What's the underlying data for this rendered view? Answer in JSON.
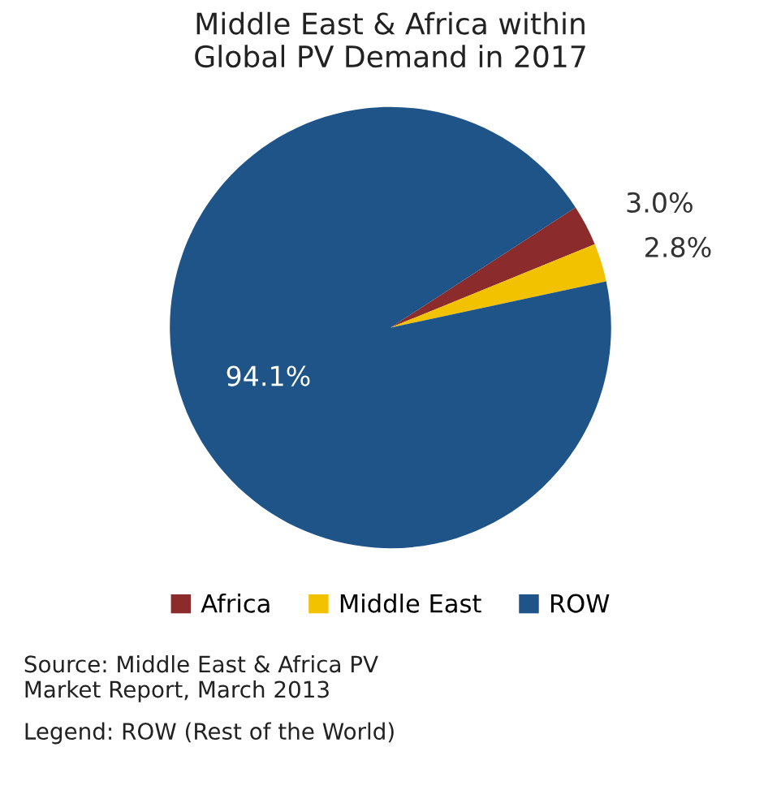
{
  "chart_data": {
    "type": "pie",
    "title": "Middle East & Africa within\nGlobal PV Demand in 2017",
    "categories": [
      "Africa",
      "Middle East",
      "ROW"
    ],
    "values": [
      3.0,
      2.8,
      94.1
    ],
    "value_labels": [
      "3.0%",
      "2.8%",
      "94.1%"
    ],
    "colors": [
      "#8b2b2b",
      "#f2c200",
      "#1f5488"
    ],
    "legend": "bottom",
    "annotations": [
      "Source: Middle East & Africa PV\nMarket Report, March 2013",
      "Legend: ROW (Rest of the World)"
    ]
  }
}
